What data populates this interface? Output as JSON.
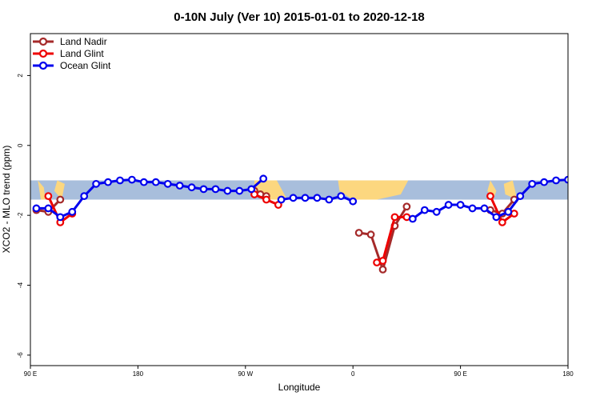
{
  "chart_data": {
    "type": "line",
    "title": "0-10N July (Ver 10)   2015-01-01 to 2020-12-18",
    "xlabel": "Longitude",
    "ylabel": "XCO2 - MLO trend (ppm)",
    "xlim": [
      90,
      450
    ],
    "ylim": [
      -6.3,
      3.2
    ],
    "x_ticks": [
      {
        "value": 90,
        "label": "90 E"
      },
      {
        "value": 162,
        "label": "180"
      },
      {
        "value": 234,
        "label": "90 W"
      },
      {
        "value": 306,
        "label": "0"
      },
      {
        "value": 378,
        "label": "90 E"
      },
      {
        "value": 450,
        "label": "180"
      }
    ],
    "y_ticks": [
      {
        "value": 2,
        "label": "2"
      },
      {
        "value": 0,
        "label": "0"
      },
      {
        "value": -2,
        "label": "-2"
      },
      {
        "value": -4,
        "label": "-4"
      },
      {
        "value": -6,
        "label": "-6"
      }
    ],
    "map_band": {
      "y_top": -1.0,
      "y_bottom": -1.55,
      "ocean_color": "#a8bedc",
      "land_color": "#fcd77f"
    },
    "legend": {
      "position": "top-left"
    },
    "series": [
      {
        "name": "Land Nadir",
        "color": "#a52a2a",
        "segments": [
          [
            [
              94,
              -1.85
            ],
            [
              102,
              -1.9
            ],
            [
              110,
              -1.55
            ]
          ],
          [
            [
              240,
              -1.3
            ],
            [
              244,
              -1.4
            ],
            [
              248,
              -1.45
            ]
          ],
          [
            [
              310,
              -2.5
            ],
            [
              318,
              -2.55
            ],
            [
              326,
              -3.55
            ],
            [
              334,
              -2.3
            ],
            [
              342,
              -1.75
            ]
          ],
          [
            [
              398,
              -1.85
            ],
            [
              406,
              -1.95
            ],
            [
              414,
              -1.55
            ]
          ]
        ]
      },
      {
        "name": "Land Glint",
        "color": "#ee0000",
        "segments": [
          [
            [
              102,
              -1.45
            ],
            [
              110,
              -2.2
            ],
            [
              118,
              -1.95
            ]
          ],
          [
            [
              240,
              -1.4
            ],
            [
              248,
              -1.55
            ],
            [
              256,
              -1.7
            ]
          ],
          [
            [
              322,
              -3.35
            ],
            [
              326,
              -3.3
            ],
            [
              334,
              -2.05
            ],
            [
              342,
              -2.05
            ]
          ],
          [
            [
              398,
              -1.45
            ],
            [
              406,
              -2.2
            ],
            [
              414,
              -1.95
            ]
          ]
        ]
      },
      {
        "name": "Ocean Glint",
        "color": "#0000ee",
        "segments": [
          [
            [
              94,
              -1.8
            ],
            [
              102,
              -1.8
            ],
            [
              110,
              -2.05
            ],
            [
              118,
              -1.9
            ],
            [
              126,
              -1.45
            ],
            [
              134,
              -1.1
            ],
            [
              142,
              -1.05
            ],
            [
              150,
              -1.0
            ],
            [
              158,
              -0.98
            ],
            [
              166,
              -1.05
            ],
            [
              174,
              -1.05
            ],
            [
              182,
              -1.1
            ],
            [
              190,
              -1.15
            ],
            [
              198,
              -1.2
            ],
            [
              206,
              -1.25
            ],
            [
              214,
              -1.25
            ],
            [
              222,
              -1.3
            ],
            [
              230,
              -1.3
            ],
            [
              238,
              -1.25
            ],
            [
              246,
              -0.95
            ]
          ],
          [
            [
              258,
              -1.55
            ],
            [
              266,
              -1.5
            ],
            [
              274,
              -1.5
            ],
            [
              282,
              -1.5
            ],
            [
              290,
              -1.55
            ],
            [
              298,
              -1.45
            ],
            [
              306,
              -1.6
            ]
          ],
          [
            [
              346,
              -2.1
            ],
            [
              354,
              -1.85
            ],
            [
              362,
              -1.9
            ],
            [
              370,
              -1.7
            ],
            [
              378,
              -1.7
            ],
            [
              386,
              -1.8
            ],
            [
              394,
              -1.8
            ],
            [
              402,
              -2.05
            ],
            [
              410,
              -1.9
            ],
            [
              418,
              -1.45
            ],
            [
              426,
              -1.1
            ],
            [
              434,
              -1.05
            ],
            [
              442,
              -1.0
            ],
            [
              450,
              -0.98
            ]
          ]
        ]
      }
    ]
  }
}
